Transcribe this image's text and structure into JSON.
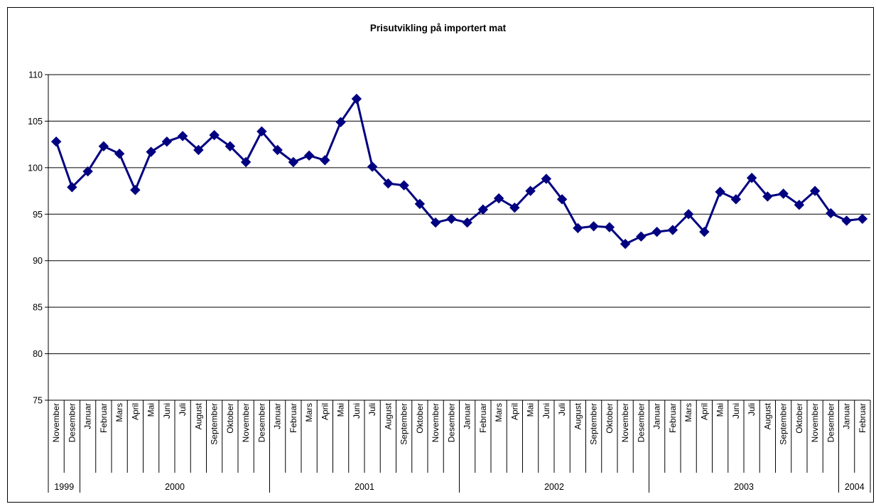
{
  "chart_data": {
    "type": "line",
    "title": "Prisutvikling på importert mat",
    "xlabel": "",
    "ylabel": "",
    "ylim": [
      75,
      110
    ],
    "yticks": [
      75,
      80,
      85,
      90,
      95,
      100,
      105,
      110
    ],
    "grid": true,
    "legend": "none",
    "line_color": "#000080",
    "marker": "diamond",
    "categories": [
      "November",
      "Desember",
      "Januar",
      "Februar",
      "Mars",
      "April",
      "Mai",
      "Juni",
      "Juli",
      "August",
      "September",
      "Oktober",
      "November",
      "Desember",
      "Januar",
      "Februar",
      "Mars",
      "April",
      "Mai",
      "Juni",
      "Juli",
      "August",
      "September",
      "Oktober",
      "November",
      "Desember",
      "Januar",
      "Februar",
      "Mars",
      "April",
      "Mai",
      "Juni",
      "Juli",
      "August",
      "September",
      "Oktober",
      "November",
      "Desember",
      "Januar",
      "Februar",
      "Mars",
      "April",
      "Mai",
      "Juni",
      "Juli",
      "August",
      "September",
      "Oktober",
      "November",
      "Desember",
      "Januar",
      "Februar"
    ],
    "years": [
      {
        "label": "1999",
        "start": 0,
        "count": 2
      },
      {
        "label": "2000",
        "start": 2,
        "count": 12
      },
      {
        "label": "2001",
        "start": 14,
        "count": 12
      },
      {
        "label": "2002",
        "start": 26,
        "count": 12
      },
      {
        "label": "2003",
        "start": 38,
        "count": 12
      },
      {
        "label": "2004",
        "start": 50,
        "count": 2
      }
    ],
    "series": [
      {
        "values": [
          102.8,
          97.9,
          99.6,
          102.3,
          101.5,
          97.6,
          101.7,
          102.8,
          103.4,
          101.9,
          103.5,
          102.3,
          100.6,
          103.9,
          101.9,
          100.6,
          101.3,
          100.8,
          104.9,
          107.4,
          100.1,
          98.3,
          98.1,
          96.1,
          94.1,
          94.5,
          94.1,
          95.5,
          96.7,
          95.7,
          97.5,
          98.8,
          96.6,
          93.5,
          93.7,
          93.6,
          91.8,
          92.6,
          93.1,
          93.3,
          95.0,
          93.1,
          97.4,
          96.6,
          98.9,
          96.9,
          97.2,
          96.0,
          97.5,
          95.1,
          94.3,
          94.5
        ]
      }
    ]
  }
}
